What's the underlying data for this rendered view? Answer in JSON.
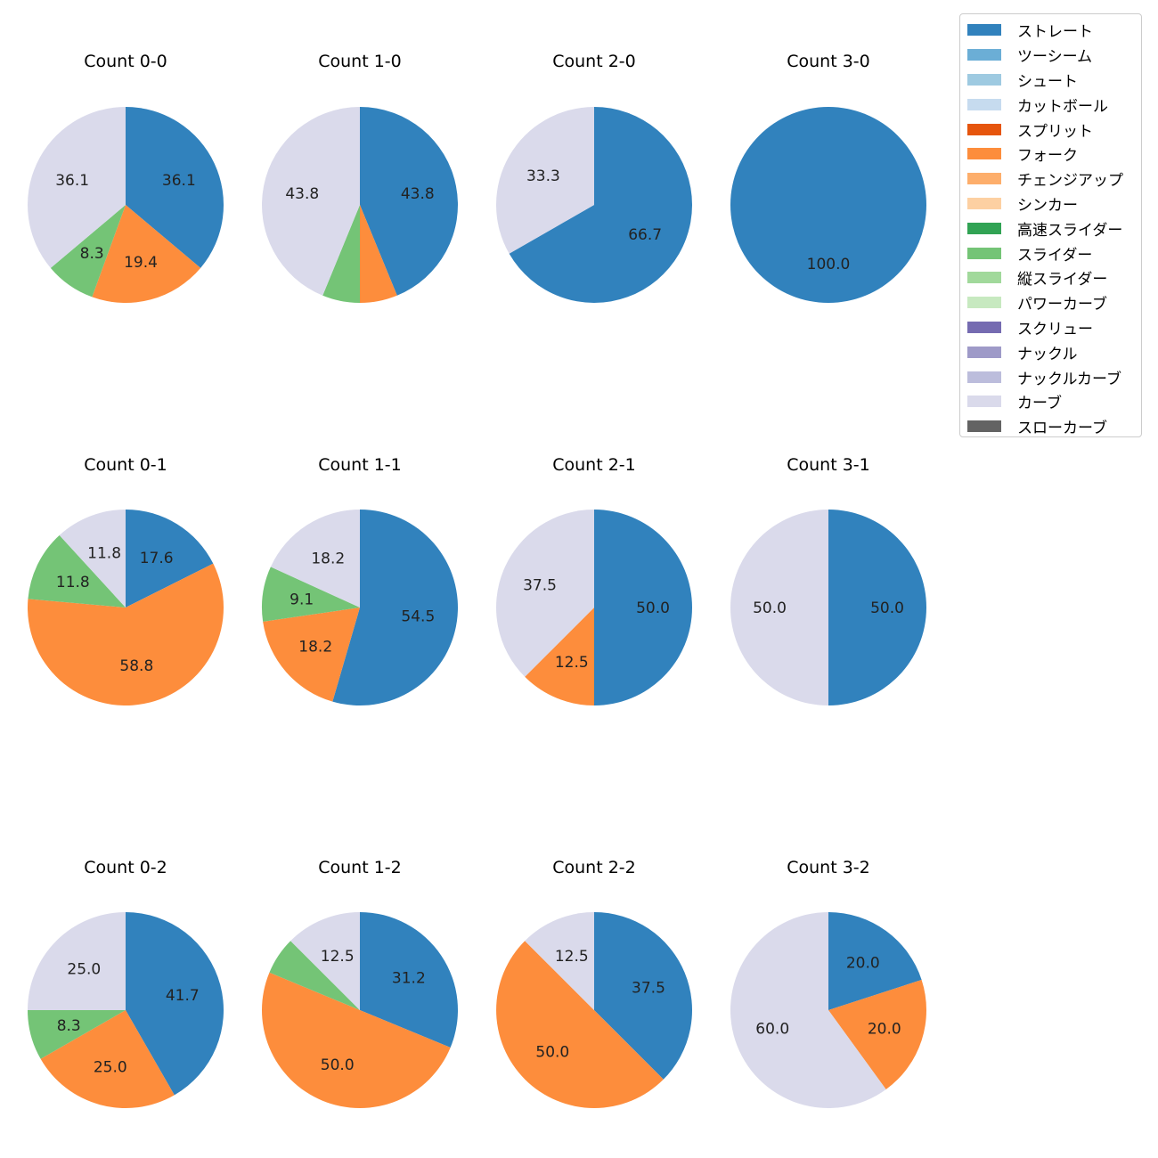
{
  "chart_data": {
    "type": "pie",
    "legend_placement": "top-right",
    "series_colors": [
      "#3182bd",
      "#6baed6",
      "#9ecae1",
      "#c6dbef",
      "#e6550d",
      "#fd8d3c",
      "#fdae6b",
      "#fdd0a2",
      "#31a354",
      "#74c476",
      "#a1d99b",
      "#c7e9c0",
      "#756bb1",
      "#9e9ac8",
      "#bcbddc",
      "#dadaeb",
      "#636363"
    ],
    "series_names": [
      "ストレート",
      "ツーシーム",
      "シュート",
      "カットボール",
      "スプリット",
      "フォーク",
      "チェンジアップ",
      "シンカー",
      "高速スライダー",
      "スライダー",
      "縦スライダー",
      "パワーカーブ",
      "スクリュー",
      "ナックル",
      "ナックルカーブ",
      "カーブ",
      "スローカーブ"
    ],
    "charts": [
      {
        "title": "Count 0-0",
        "slices": [
          {
            "series": 0,
            "value": 36.1,
            "label": "36.1"
          },
          {
            "series": 5,
            "value": 19.4,
            "label": "19.4"
          },
          {
            "series": 9,
            "value": 8.3,
            "label": "8.3"
          },
          {
            "series": 15,
            "value": 36.1,
            "label": "36.1"
          }
        ]
      },
      {
        "title": "Count 1-0",
        "slices": [
          {
            "series": 0,
            "value": 43.8,
            "label": "43.8"
          },
          {
            "series": 5,
            "value": 6.2,
            "label": ""
          },
          {
            "series": 9,
            "value": 6.2,
            "label": ""
          },
          {
            "series": 15,
            "value": 43.8,
            "label": "43.8"
          }
        ]
      },
      {
        "title": "Count 2-0",
        "slices": [
          {
            "series": 0,
            "value": 66.7,
            "label": "66.7"
          },
          {
            "series": 15,
            "value": 33.3,
            "label": "33.3"
          }
        ]
      },
      {
        "title": "Count 3-0",
        "slices": [
          {
            "series": 0,
            "value": 100.0,
            "label": "100.0"
          }
        ]
      },
      {
        "title": "Count 0-1",
        "slices": [
          {
            "series": 0,
            "value": 17.6,
            "label": "17.6"
          },
          {
            "series": 5,
            "value": 58.8,
            "label": "58.8"
          },
          {
            "series": 9,
            "value": 11.8,
            "label": "11.8"
          },
          {
            "series": 15,
            "value": 11.8,
            "label": "11.8"
          }
        ]
      },
      {
        "title": "Count 1-1",
        "slices": [
          {
            "series": 0,
            "value": 54.5,
            "label": "54.5"
          },
          {
            "series": 5,
            "value": 18.2,
            "label": "18.2"
          },
          {
            "series": 9,
            "value": 9.1,
            "label": "9.1"
          },
          {
            "series": 15,
            "value": 18.2,
            "label": "18.2"
          }
        ]
      },
      {
        "title": "Count 2-1",
        "slices": [
          {
            "series": 0,
            "value": 50.0,
            "label": "50.0"
          },
          {
            "series": 5,
            "value": 12.5,
            "label": "12.5"
          },
          {
            "series": 15,
            "value": 37.5,
            "label": "37.5"
          }
        ]
      },
      {
        "title": "Count 3-1",
        "slices": [
          {
            "series": 0,
            "value": 50.0,
            "label": "50.0"
          },
          {
            "series": 15,
            "value": 50.0,
            "label": "50.0"
          }
        ]
      },
      {
        "title": "Count 0-2",
        "slices": [
          {
            "series": 0,
            "value": 41.7,
            "label": "41.7"
          },
          {
            "series": 5,
            "value": 25.0,
            "label": "25.0"
          },
          {
            "series": 9,
            "value": 8.3,
            "label": "8.3"
          },
          {
            "series": 15,
            "value": 25.0,
            "label": "25.0"
          }
        ]
      },
      {
        "title": "Count 1-2",
        "slices": [
          {
            "series": 0,
            "value": 31.2,
            "label": "31.2"
          },
          {
            "series": 5,
            "value": 50.0,
            "label": "50.0"
          },
          {
            "series": 9,
            "value": 6.2,
            "label": ""
          },
          {
            "series": 15,
            "value": 12.5,
            "label": "12.5"
          }
        ]
      },
      {
        "title": "Count 2-2",
        "slices": [
          {
            "series": 0,
            "value": 37.5,
            "label": "37.5"
          },
          {
            "series": 5,
            "value": 50.0,
            "label": "50.0"
          },
          {
            "series": 15,
            "value": 12.5,
            "label": "12.5"
          }
        ]
      },
      {
        "title": "Count 3-2",
        "slices": [
          {
            "series": 0,
            "value": 20.0,
            "label": "20.0"
          },
          {
            "series": 5,
            "value": 20.0,
            "label": "20.0"
          },
          {
            "series": 15,
            "value": 60.0,
            "label": "60.0"
          }
        ]
      }
    ]
  }
}
